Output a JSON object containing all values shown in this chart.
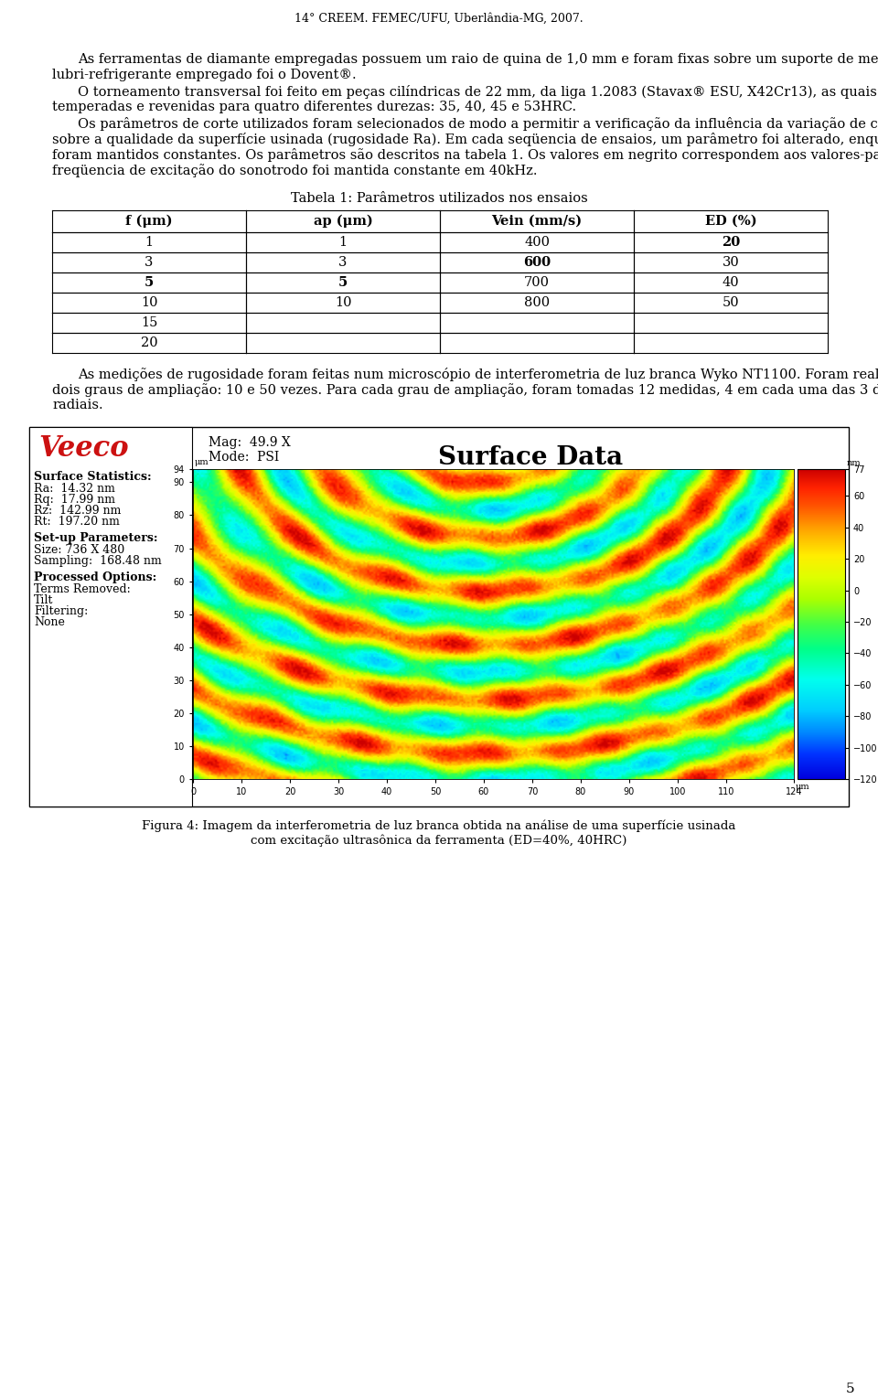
{
  "header": "14° CREEM. FEMEC/UFU, Uberlândia-MG, 2007.",
  "paragraph1": "As ferramentas de diamante empregadas possuem um raio de quina de 1,0 mm e foram fixas sobre um suporte de metal-duro. O fluido lubri-refrigerante empregado foi o Dovent®.",
  "paragraph2": "O torneamento transversal foi feito em peças cilíndricas de 22 mm, da liga 1.2083 (Stavax® ESU, X42Cr13), as quais foram temperadas e revenidas para quatro diferentes durezas: 35, 40, 45 e 53HRC.",
  "paragraph3a": "Os parâmetros de corte utilizados foram selecionados de modo a permitir a verificação da influência da variação de cada um deles sobre a qualidade da superfície usinada (rugosidade R",
  "paragraph3b": "a",
  "paragraph3c": ").\nEm cada seqüencia de ensaios, um parâmetro foi alterado, enquanto os outros foram mantidos constantes. Os parâmetros são descritos na tabela 1. Os valores em negrito correspondem aos valores-padrão iniciais. A freqüencia de excitação do sonotrodo foi mantida constante em 40kHz.",
  "table_title": "Tabela 1: Parâmetros utilizados nos ensaios",
  "table_headers": [
    "f (μm)",
    "ap (μm)",
    "Vein (mm/s)",
    "ED (%)"
  ],
  "table_data": [
    [
      "1",
      "1",
      "400",
      "20"
    ],
    [
      "3",
      "3",
      "600",
      "30"
    ],
    [
      "5",
      "5",
      "700",
      "40"
    ],
    [
      "10",
      "10",
      "800",
      "50"
    ],
    [
      "15",
      "",
      "",
      ""
    ],
    [
      "20",
      "",
      "",
      ""
    ]
  ],
  "bold_map": {
    "0,3": true,
    "1,2": true,
    "2,0": true,
    "2,1": true
  },
  "paragraph4": "As medições de rugosidade foram feitas num microscópio de interferometria de luz branca Wyko NT1100. Foram realizadas medidas em dois graus de ampliação: 10 e 50 vezes. Para cada grau de ampliação, foram tomadas 12 medidas, 4 em cada uma das 3 diferentes posições radiais.",
  "fig_caption_line1": "Figura 4: Imagem da interferometria de luz branca obtida na análise de uma superfície usinada",
  "fig_caption_line2": "com excitação ultrasônica da ferramenta (ED=40%, 40HRC)",
  "page_number": "5",
  "veeco_mag": "Mag:  49.9 X",
  "veeco_mode": "Mode:  PSI",
  "surface_data_title": "Surface Data",
  "surface_stats_title": "Surface Statistics:",
  "surface_stats": [
    "Ra:  14.32 nm",
    "Rq:  17.99 nm",
    "Rz:  142.99 nm",
    "Rt:  197.20 nm"
  ],
  "setup_params_title": "Set-up Parameters:",
  "setup_params": [
    "Size: 736 X 480",
    "Sampling:  168.48 nm"
  ],
  "processed_title": "Processed Options:",
  "processed_params": [
    "Terms Removed:",
    "Tilt",
    "Filtering:",
    "None"
  ],
  "bg_color": "#ffffff",
  "font_size_body": 10.5,
  "font_size_small": 9.0
}
